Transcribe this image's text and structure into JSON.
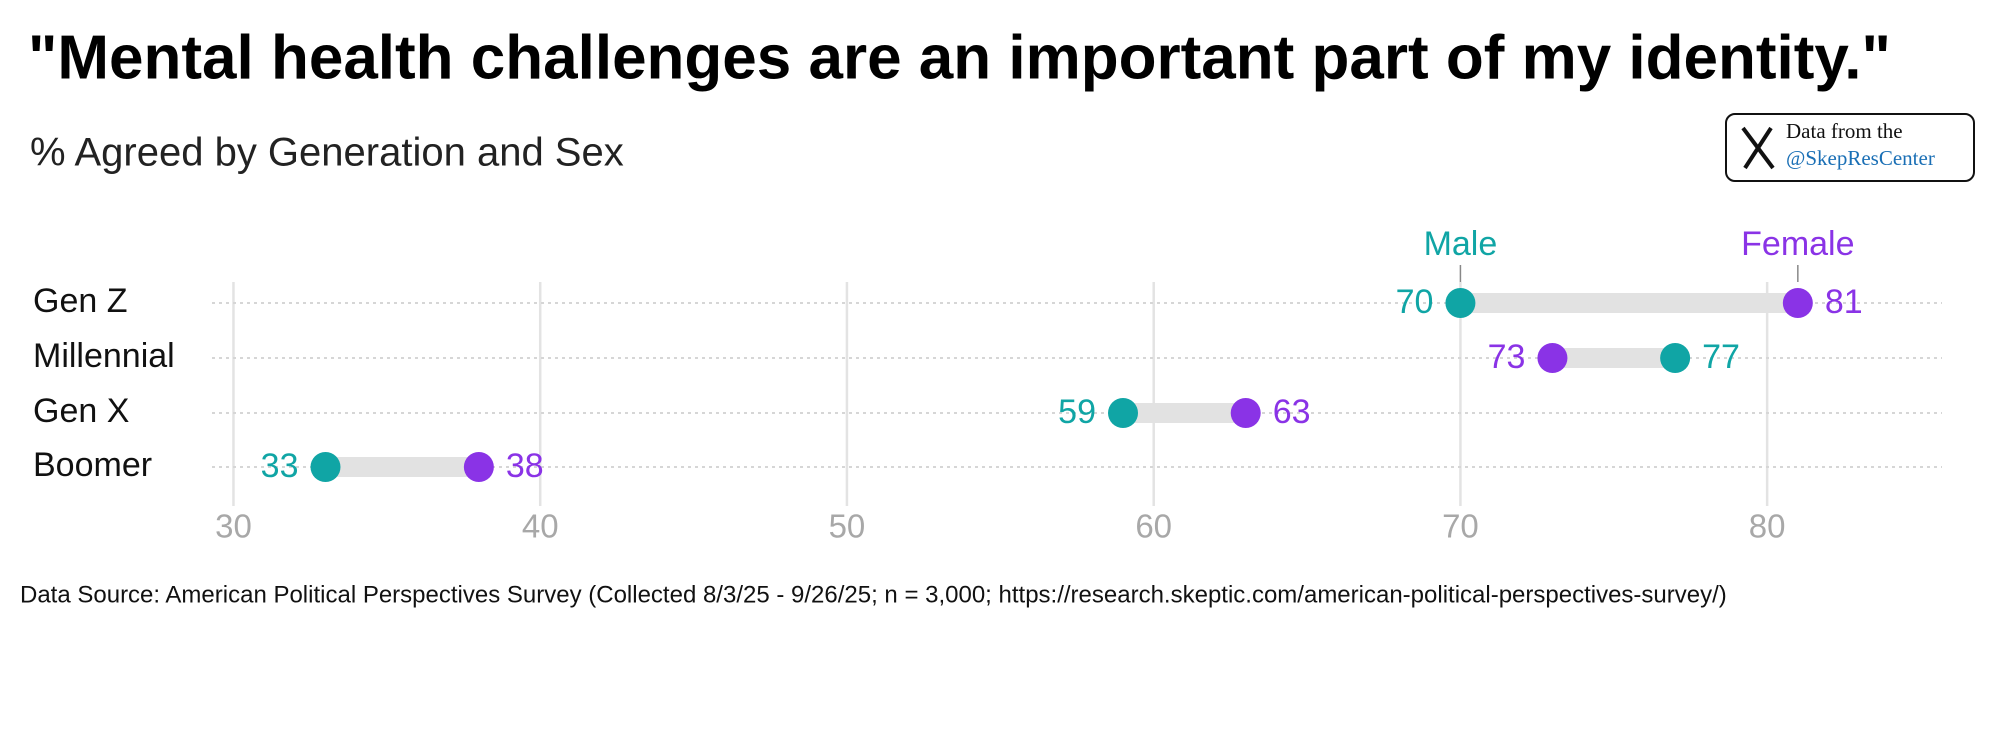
{
  "chart_data": {
    "type": "dumbbell",
    "title": "\"Mental health challenges are an important part of my identity.\"",
    "subtitle": "% Agreed by Generation and Sex",
    "categories": [
      "Gen Z",
      "Millennial",
      "Gen X",
      "Boomer"
    ],
    "series": [
      {
        "name": "Male",
        "color": "#10a5a5",
        "values": [
          70,
          77,
          59,
          33
        ]
      },
      {
        "name": "Female",
        "color": "#8a33e6",
        "values": [
          81,
          73,
          63,
          38
        ]
      }
    ],
    "xlim": [
      29.3,
      85.7
    ],
    "xticks": [
      30,
      40,
      50,
      60,
      70,
      80
    ],
    "grid": true,
    "badge": {
      "line1": "Data from the",
      "line2": "@SkepResCenter"
    },
    "source": "Data Source: American Political Perspectives Survey (Collected 8/3/25 - 9/26/25; n = 3,000; https://research.skeptic.com/american-political-perspectives-survey/)"
  }
}
